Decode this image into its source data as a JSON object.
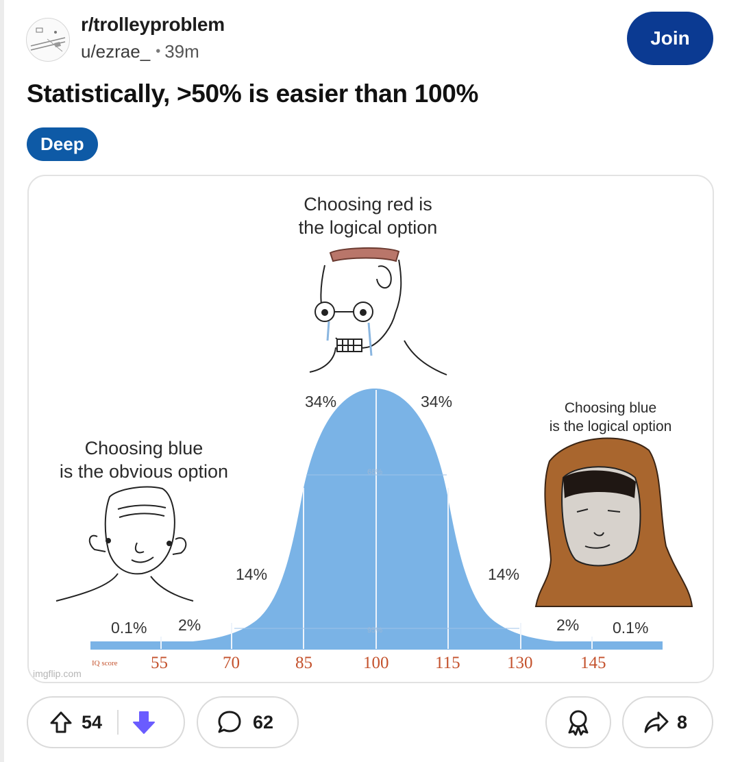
{
  "subreddit": {
    "name": "r/trolleyproblem"
  },
  "post": {
    "author": "u/ezrae_",
    "separator": "•",
    "age": "39m",
    "title": "Statistically, >50% is easier than 100%",
    "flair": "Deep"
  },
  "join_label": "Join",
  "meme": {
    "caption_top_line1": "Choosing red is",
    "caption_top_line2": "the logical option",
    "caption_left_line1": "Choosing blue",
    "caption_left_line2": "is the obvious option",
    "caption_right_line1": "Choosing blue",
    "caption_right_line2": "is the logical option",
    "percent_labels": [
      "0.1%",
      "2%",
      "14%",
      "34%",
      "34%",
      "14%",
      "2%",
      "0.1%"
    ],
    "inner_labels": [
      "68%",
      "95%"
    ],
    "axis_caption": "IQ score",
    "axis_ticks": [
      "55",
      "70",
      "85",
      "100",
      "115",
      "130",
      "145"
    ],
    "watermark": "imgflip.com",
    "curve_color": "#7ab3e6"
  },
  "actions": {
    "upvotes": "54",
    "comments": "62",
    "shares": "8"
  }
}
